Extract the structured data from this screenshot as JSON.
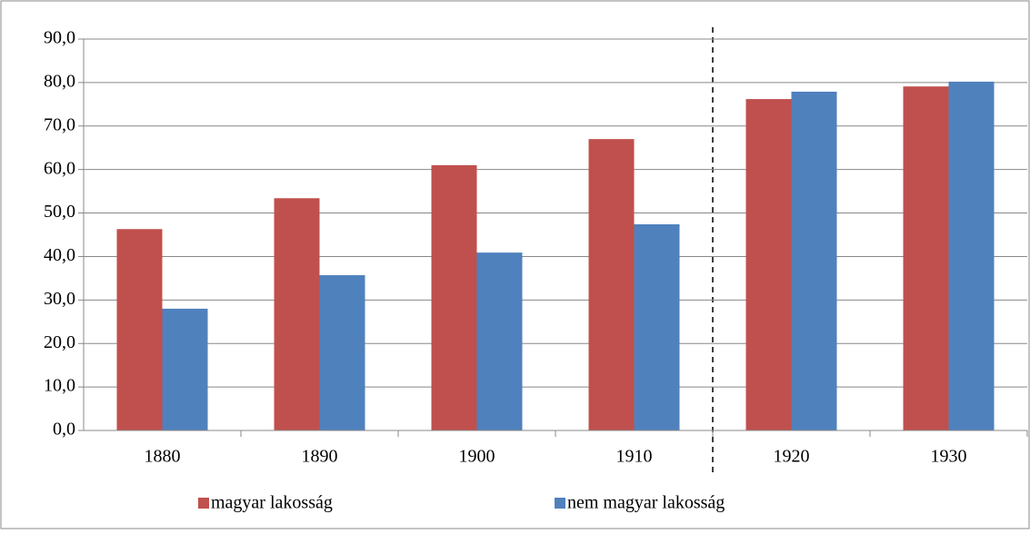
{
  "chart_data": {
    "type": "bar",
    "categories": [
      "1880",
      "1890",
      "1900",
      "1910",
      "1920",
      "1930"
    ],
    "series": [
      {
        "name": "magyar lakosság",
        "color": "#c0504d",
        "values": [
          46.3,
          53.4,
          61.0,
          67.0,
          76.2,
          79.1
        ]
      },
      {
        "name": "nem magyar lakosság",
        "color": "#4f81bd",
        "values": [
          28.0,
          35.7,
          40.9,
          47.4,
          77.9,
          80.2
        ]
      }
    ],
    "ylim": [
      0,
      90
    ],
    "yticks": [
      {
        "value": 0,
        "label": "0,0"
      },
      {
        "value": 10,
        "label": "10,0"
      },
      {
        "value": 20,
        "label": "20,0"
      },
      {
        "value": 30,
        "label": "30,0"
      },
      {
        "value": 40,
        "label": "40,0"
      },
      {
        "value": 50,
        "label": "50,0"
      },
      {
        "value": 60,
        "label": "60,0"
      },
      {
        "value": 70,
        "label": "70,0"
      },
      {
        "value": 80,
        "label": "80,0"
      },
      {
        "value": 90,
        "label": "90,0"
      }
    ],
    "grid": true,
    "legend": "bottom"
  }
}
